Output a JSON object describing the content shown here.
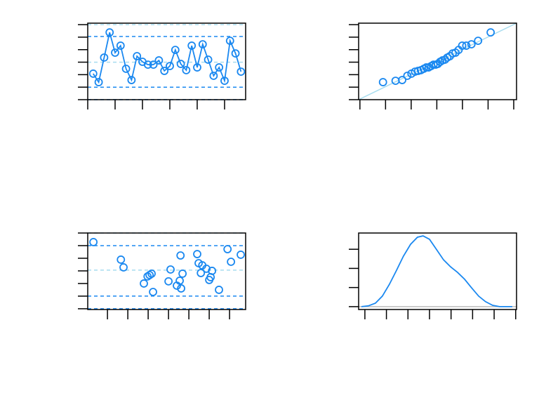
{
  "chart_data": [
    {
      "type": "line",
      "color": "#1a88f0",
      "x": [
        1,
        2,
        3,
        4,
        5,
        6,
        7,
        8,
        9,
        10,
        11,
        12,
        13,
        14,
        15,
        16,
        17,
        18,
        19,
        20,
        21,
        22,
        23,
        24,
        25,
        26,
        27,
        28
      ],
      "values": [
        2.08,
        1.4,
        3.37,
        5.38,
        3.76,
        4.32,
        2.47,
        1.57,
        3.48,
        3.03,
        2.8,
        2.8,
        3.14,
        2.3,
        2.69,
        3.98,
        2.86,
        2.36,
        4.32,
        2.58,
        4.43,
        3.2,
        1.91,
        2.58,
        1.51,
        4.71,
        3.7,
        2.24
      ],
      "xlim": [
        0,
        28.85
      ],
      "xticks": [
        0,
        5,
        10,
        15,
        20,
        25
      ],
      "ylim": [
        0,
        6.12
      ],
      "yticks": [
        0,
        1,
        2,
        3,
        4,
        5,
        6
      ],
      "hlines": [
        {
          "value": 6,
          "color": "#a6dcef"
        },
        {
          "value": 5.05,
          "color": "#1a88f0"
        },
        {
          "value": 3,
          "color": "#a6dcef"
        },
        {
          "value": 1,
          "color": "#1a88f0"
        },
        {
          "value": 0,
          "color": "#1a88f0"
        }
      ]
    },
    {
      "type": "scatter",
      "color": "#1a88f0",
      "x": [
        -2.1,
        -1.61,
        -1.35,
        -1.15,
        -0.99,
        -0.85,
        -0.73,
        -0.62,
        -0.51,
        -0.41,
        -0.32,
        -0.22,
        -0.13,
        -0.04,
        0.04,
        0.13,
        0.22,
        0.32,
        0.41,
        0.51,
        0.62,
        0.73,
        0.85,
        0.99,
        1.15,
        1.35,
        1.61,
        2.1
      ],
      "values": [
        1.4,
        1.51,
        1.57,
        1.91,
        2.08,
        2.24,
        2.3,
        2.36,
        2.47,
        2.58,
        2.58,
        2.69,
        2.8,
        2.8,
        2.86,
        3.03,
        3.14,
        3.2,
        3.37,
        3.48,
        3.7,
        3.76,
        3.98,
        4.32,
        4.32,
        4.43,
        4.71,
        5.38
      ],
      "xlim": [
        -3.05,
        3.11
      ],
      "xticks": [
        -3,
        -2,
        -1,
        0,
        1,
        2,
        3
      ],
      "ylim": [
        0,
        6.12
      ],
      "yticks": [
        0,
        1,
        2,
        3,
        4,
        5,
        6
      ],
      "ref_line": {
        "x": [
          -3.05,
          3.11
        ],
        "y": [
          0,
          6.12
        ],
        "color": "#a6dcef"
      }
    },
    {
      "type": "scatter",
      "color": "#1a88f0",
      "x": [
        0.31,
        1.66,
        1.79,
        2.79,
        2.97,
        3.07,
        3.17,
        3.24,
        4.0,
        4.1,
        4.41,
        4.55,
        4.62,
        4.59,
        4.69,
        5.41,
        5.48,
        5.59,
        5.66,
        5.86,
        6.0,
        6.07,
        6.14,
        6.48,
        6.9,
        7.07,
        7.55
      ],
      "values": [
        5.28,
        3.89,
        3.28,
        2.0,
        2.56,
        2.67,
        2.78,
        1.33,
        2.17,
        3.11,
        1.83,
        2.22,
        1.61,
        4.22,
        2.78,
        4.33,
        3.61,
        2.83,
        3.44,
        3.17,
        2.28,
        2.5,
        3.0,
        1.5,
        4.72,
        3.72,
        4.28
      ],
      "xlim": [
        0.03,
        7.79
      ],
      "xticks": [
        1,
        2,
        3,
        4,
        5,
        6,
        7
      ],
      "ylim": [
        -0.06,
        6.0
      ],
      "yticks": [
        0,
        1,
        2,
        3,
        4,
        5,
        6
      ],
      "hlines": [
        {
          "value": 6,
          "color": "#a6dcef"
        },
        {
          "value": 5,
          "color": "#1a88f0"
        },
        {
          "value": 3.06,
          "color": "#a6dcef"
        },
        {
          "value": 1,
          "color": "#1a88f0"
        },
        {
          "value": 0,
          "color": "#1a88f0"
        }
      ]
    },
    {
      "type": "density",
      "color": "#1a88f0",
      "x": [
        -0.16,
        0.16,
        0.49,
        0.81,
        1.14,
        1.47,
        1.79,
        2.12,
        2.44,
        2.7,
        3.0,
        3.32,
        3.65,
        3.97,
        4.3,
        4.63,
        4.95,
        5.28,
        5.6,
        5.93,
        6.25,
        6.84
      ],
      "values": [
        0,
        0.04,
        0.18,
        0.55,
        1.17,
        1.9,
        2.64,
        3.26,
        3.63,
        3.7,
        3.52,
        3.0,
        2.45,
        2.09,
        1.79,
        1.43,
        0.99,
        0.55,
        0.26,
        0.07,
        0,
        0
      ],
      "xlim": [
        -0.29,
        7.04
      ],
      "xticks": [
        0,
        1,
        2,
        3,
        4,
        5,
        6,
        7
      ],
      "ylim": [
        -0.15,
        3.85
      ],
      "yticks": [
        0,
        1,
        2,
        3
      ],
      "hlines": [
        {
          "value": 0,
          "color": "#bbbbbb",
          "solid": true
        }
      ]
    }
  ]
}
